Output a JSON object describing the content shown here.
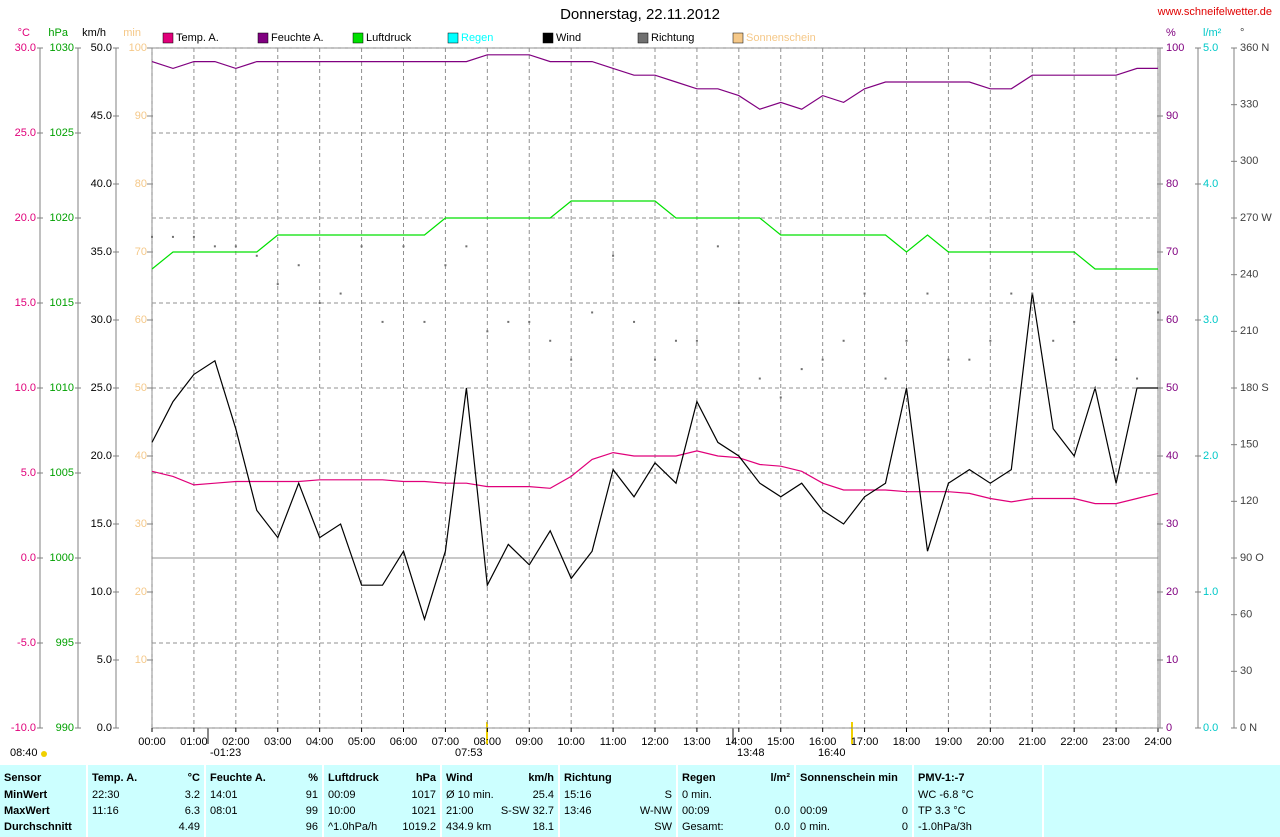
{
  "chart_data": {
    "type": "line",
    "title": "Donnerstag, 22.11.2012",
    "source": "www.schneifelwetter.de",
    "x": [
      0,
      0.5,
      1,
      1.5,
      2,
      2.5,
      3,
      3.5,
      4,
      4.5,
      5,
      5.5,
      6,
      6.5,
      7,
      7.5,
      8,
      8.5,
      9,
      9.5,
      10,
      10.5,
      11,
      11.5,
      12,
      12.5,
      13,
      13.5,
      14,
      14.5,
      15,
      15.5,
      16,
      16.5,
      17,
      17.5,
      18,
      18.5,
      19,
      19.5,
      20,
      20.5,
      21,
      21.5,
      22,
      22.5,
      23,
      23.5,
      24
    ],
    "xlim": [
      0,
      24
    ],
    "xticks": [
      {
        "value": 0,
        "label": "00:00"
      },
      {
        "value": 1,
        "label": "01:00"
      },
      {
        "value": 2,
        "label": "02:00"
      },
      {
        "value": 3,
        "label": "03:00"
      },
      {
        "value": 4,
        "label": "04:00"
      },
      {
        "value": 5,
        "label": "05:00"
      },
      {
        "value": 6,
        "label": "06:00"
      },
      {
        "value": 7,
        "label": "07:00"
      },
      {
        "value": 8,
        "label": "08:00"
      },
      {
        "value": 9,
        "label": "09:00"
      },
      {
        "value": 10,
        "label": "10:00"
      },
      {
        "value": 11,
        "label": "11:00"
      },
      {
        "value": 12,
        "label": "12:00"
      },
      {
        "value": 13,
        "label": "13:00"
      },
      {
        "value": 14,
        "label": "14:00"
      },
      {
        "value": 15,
        "label": "15:00"
      },
      {
        "value": 16,
        "label": "16:00"
      },
      {
        "value": 17,
        "label": "17:00"
      },
      {
        "value": 18,
        "label": "18:00"
      },
      {
        "value": 19,
        "label": "19:00"
      },
      {
        "value": 20,
        "label": "20:00"
      },
      {
        "value": 21,
        "label": "21:00"
      },
      {
        "value": 22,
        "label": "22:00"
      },
      {
        "value": 23,
        "label": "23:00"
      },
      {
        "value": 24,
        "label": "24:00"
      }
    ],
    "grid": true,
    "axes": [
      {
        "id": "y",
        "label": "°C",
        "color": "#e0007a",
        "side": "left",
        "lim": [
          -10,
          30
        ],
        "ticks": [
          {
            "value": -10,
            "label": "-10.0"
          },
          {
            "value": -5,
            "label": "-5.0"
          },
          {
            "value": 0,
            "label": "0.0"
          },
          {
            "value": 5,
            "label": "5.0"
          },
          {
            "value": 10,
            "label": "10.0"
          },
          {
            "value": 15,
            "label": "15.0"
          },
          {
            "value": 20,
            "label": "20.0"
          },
          {
            "value": 25,
            "label": "25.0"
          },
          {
            "value": 30,
            "label": "30.0"
          }
        ]
      },
      {
        "id": "y2",
        "label": "hPa",
        "color": "#00a000",
        "side": "left",
        "lim": [
          990,
          1030
        ],
        "ticks": [
          990,
          995,
          1000,
          1005,
          1010,
          1015,
          1020,
          1025,
          1030
        ]
      },
      {
        "id": "y3",
        "label": "km/h",
        "color": "#000000",
        "side": "left",
        "lim": [
          0,
          50
        ],
        "ticks": [
          {
            "value": 0,
            "label": "0.0"
          },
          {
            "value": 5,
            "label": "5.0"
          },
          {
            "value": 10,
            "label": "10.0"
          },
          {
            "value": 15,
            "label": "15.0"
          },
          {
            "value": 20,
            "label": "20.0"
          },
          {
            "value": 25,
            "label": "25.0"
          },
          {
            "value": 30,
            "label": "30.0"
          },
          {
            "value": 35,
            "label": "35.0"
          },
          {
            "value": 40,
            "label": "40.0"
          },
          {
            "value": 45,
            "label": "45.0"
          },
          {
            "value": 50,
            "label": "50.0"
          }
        ]
      },
      {
        "id": "y4",
        "label": "min",
        "color": "#f5c888",
        "side": "left",
        "lim": [
          0,
          100
        ],
        "ticks": [
          10,
          20,
          30,
          40,
          50,
          60,
          70,
          80,
          90,
          100
        ]
      },
      {
        "id": "y5",
        "label": "%",
        "color": "#800080",
        "side": "right",
        "lim": [
          0,
          100
        ],
        "ticks": [
          0,
          10,
          20,
          30,
          40,
          50,
          60,
          70,
          80,
          90,
          100
        ]
      },
      {
        "id": "y6",
        "label": "l/m²",
        "color": "#00c8c8",
        "side": "right",
        "lim": [
          0,
          5
        ],
        "ticks": [
          {
            "value": 0,
            "label": "0.0"
          },
          {
            "value": 1,
            "label": "1.0"
          },
          {
            "value": 2,
            "label": "2.0"
          },
          {
            "value": 3,
            "label": "3.0"
          },
          {
            "value": 4,
            "label": "4.0"
          },
          {
            "value": 5,
            "label": "5.0"
          }
        ]
      },
      {
        "id": "y7",
        "label": "°",
        "color": "#404040",
        "side": "right",
        "lim": [
          0,
          360
        ],
        "ticks": [
          {
            "value": 0,
            "label": "0 N"
          },
          30,
          60,
          {
            "value": 90,
            "label": "90 O"
          },
          120,
          150,
          {
            "value": 180,
            "label": "180 S"
          },
          210,
          240,
          {
            "value": 270,
            "label": "270 W"
          },
          300,
          330,
          {
            "value": 360,
            "label": "360 N"
          }
        ]
      }
    ],
    "series": [
      {
        "name": "Temp. A.",
        "color": "#e0007a",
        "axis": "y",
        "values": [
          5.1,
          4.8,
          4.3,
          4.4,
          4.5,
          4.5,
          4.5,
          4.5,
          4.6,
          4.6,
          4.6,
          4.6,
          4.5,
          4.5,
          4.4,
          4.4,
          4.2,
          4.2,
          4.2,
          4.1,
          4.8,
          5.8,
          6.2,
          6.0,
          6.0,
          6.0,
          6.3,
          6.0,
          5.9,
          5.5,
          5.4,
          5.1,
          4.4,
          4.0,
          4.0,
          4.0,
          3.9,
          3.9,
          3.9,
          3.8,
          3.5,
          3.3,
          3.5,
          3.5,
          3.5,
          3.2,
          3.2,
          3.5,
          3.8
        ]
      },
      {
        "name": "Feuchte A.",
        "color": "#800080",
        "axis": "y5",
        "values": [
          98,
          97,
          98,
          98,
          97,
          98,
          98,
          98,
          98,
          98,
          98,
          98,
          98,
          98,
          98,
          98,
          99,
          99,
          99,
          98,
          98,
          98,
          97,
          96,
          96,
          95,
          94,
          94,
          93,
          91,
          92,
          91,
          93,
          92,
          94,
          95,
          95,
          95,
          95,
          95,
          94,
          94,
          96,
          96,
          96,
          96,
          96,
          97,
          97
        ]
      },
      {
        "name": "Luftdruck",
        "color": "#00e000",
        "axis": "y2",
        "values": [
          1017,
          1018,
          1018,
          1018,
          1018,
          1018,
          1019,
          1019,
          1019,
          1019,
          1019,
          1019,
          1019,
          1019,
          1020,
          1020,
          1020,
          1020,
          1020,
          1020,
          1021,
          1021,
          1021,
          1021,
          1021,
          1020,
          1020,
          1020,
          1020,
          1020,
          1019,
          1019,
          1019,
          1019,
          1019,
          1019,
          1018,
          1019,
          1018,
          1018,
          1018,
          1018,
          1018,
          1018,
          1018,
          1017,
          1017,
          1017,
          1017
        ]
      },
      {
        "name": "Regen",
        "color": "#00ffff",
        "axis": "y6"
      },
      {
        "name": "Wind",
        "color": "#000000",
        "axis": "y3",
        "values": [
          21,
          24,
          26,
          27,
          22,
          16,
          14,
          18,
          14,
          15,
          10.5,
          10.5,
          13,
          8,
          13,
          25,
          10.5,
          13.5,
          12,
          14.5,
          11,
          13,
          19,
          17,
          19.5,
          18,
          24,
          21,
          20,
          18,
          17,
          18,
          16,
          15,
          17,
          18,
          25,
          13,
          18,
          19,
          18,
          19,
          32,
          22,
          20,
          25,
          18,
          25,
          25
        ]
      },
      {
        "name": "Richtung",
        "color": "#707070",
        "axis": "y7",
        "style": "dots",
        "values": [
          260,
          260,
          260,
          255,
          255,
          250,
          235,
          245,
          225,
          230,
          255,
          215,
          255,
          215,
          245,
          255,
          210,
          215,
          215,
          205,
          195,
          220,
          250,
          215,
          195,
          205,
          205,
          255,
          225,
          185,
          175,
          190,
          195,
          205,
          230,
          185,
          205,
          230,
          195,
          195,
          205,
          230,
          230,
          205,
          215,
          180,
          195,
          185,
          220
        ]
      },
      {
        "name": "Sonnenschein",
        "color": "#f5c888",
        "axis": "y4"
      }
    ],
    "annotations": [
      "08:40",
      "-01:23",
      "07:53",
      "13:48",
      "16:40"
    ]
  },
  "table": {
    "columns": [
      {
        "title": "Sensor",
        "cells": [
          {
            "left": "MinWert"
          },
          {
            "left": "MaxWert"
          },
          {
            "left": "Durchschnitt"
          }
        ]
      },
      {
        "title": "Temp. A.",
        "unit": "°C",
        "cells": [
          {
            "left": "22:30",
            "right": "3.2"
          },
          {
            "left": "11:16",
            "right": "6.3"
          },
          {
            "right": "4.49"
          }
        ]
      },
      {
        "title": "Feuchte A.",
        "unit": "%",
        "cells": [
          {
            "left": "14:01",
            "right": "91"
          },
          {
            "left": "08:01",
            "right": "99"
          },
          {
            "right": "96"
          }
        ]
      },
      {
        "title": "Luftdruck",
        "unit": "hPa",
        "cells": [
          {
            "left": "00:09",
            "right": "1017"
          },
          {
            "left": "10:00",
            "right": "1021"
          },
          {
            "left": "^1.0hPa/h",
            "right": "1019.2"
          }
        ]
      },
      {
        "title": "Wind",
        "unit": "km/h",
        "cells": [
          {
            "left": "Ø 10 min.",
            "right": "25.4"
          },
          {
            "left": "21:00",
            "right": "S-SW 32.7"
          },
          {
            "left": "434.9 km",
            "right": "18.1"
          }
        ]
      },
      {
        "title": "Richtung",
        "cells": [
          {
            "left": "15:16",
            "right": "S"
          },
          {
            "left": "13:46",
            "right": "W-NW"
          },
          {
            "right": "SW"
          }
        ]
      },
      {
        "title": "Regen",
        "unit": "l/m²",
        "cells": [
          {
            "left": "0 min."
          },
          {
            "left": "00:09",
            "right": "0.0"
          },
          {
            "left": "Gesamt:",
            "right": "0.0"
          }
        ]
      },
      {
        "title": "Sonnenschein min",
        "cells": [
          {},
          {
            "left": "00:09",
            "right": "0"
          },
          {
            "left": "0 min.",
            "right": "0"
          }
        ]
      },
      {
        "title": "PMV-1:-7",
        "cells": [
          {
            "left": "WC -6.8 °C"
          },
          {
            "left": "TP 3.3 °C"
          },
          {
            "left": "-1.0hPa/3h"
          }
        ]
      }
    ]
  }
}
